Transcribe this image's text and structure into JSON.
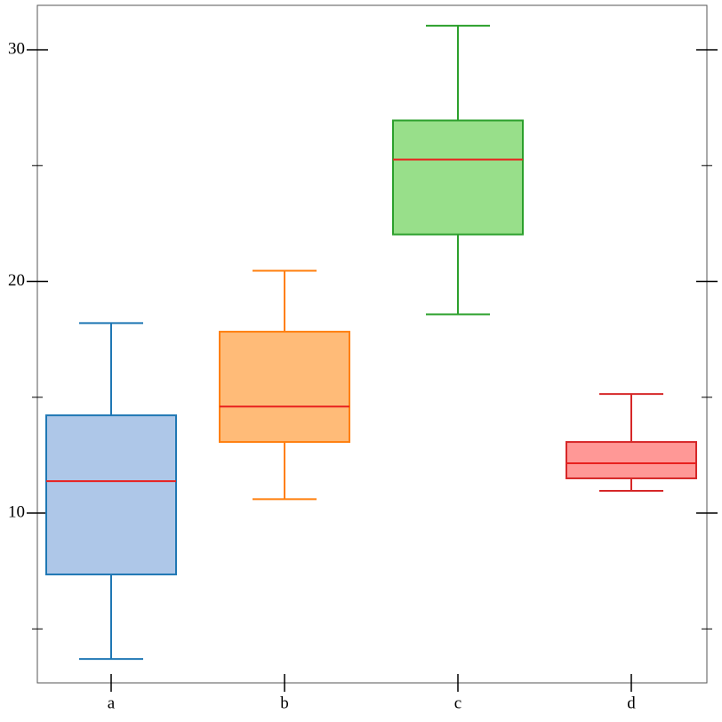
{
  "chart_data": {
    "type": "box",
    "categories": [
      "a",
      "b",
      "c",
      "d"
    ],
    "boxes": [
      {
        "min": 3.7,
        "q1": 7.35,
        "median": 11.38,
        "q3": 14.22,
        "max": 18.2
      },
      {
        "min": 10.6,
        "q1": 13.07,
        "median": 14.6,
        "q3": 17.83,
        "max": 20.46
      },
      {
        "min": 18.58,
        "q1": 22.03,
        "median": 25.26,
        "q3": 26.95,
        "max": 31.04
      },
      {
        "min": 10.96,
        "q1": 11.5,
        "median": 12.15,
        "q3": 13.07,
        "max": 15.14
      }
    ],
    "colors": [
      "#1f77b4",
      "#ff7f0e",
      "#2ca02c",
      "#d62728"
    ],
    "fills": [
      "#aec7e8",
      "#ffbb78",
      "#98df8a",
      "#ff9896"
    ],
    "median_color": "#e8201e",
    "ylim": [
      2.67,
      31.92
    ],
    "yticks": [
      10,
      20,
      30
    ],
    "yminorticks": [
      5,
      15,
      25
    ]
  }
}
